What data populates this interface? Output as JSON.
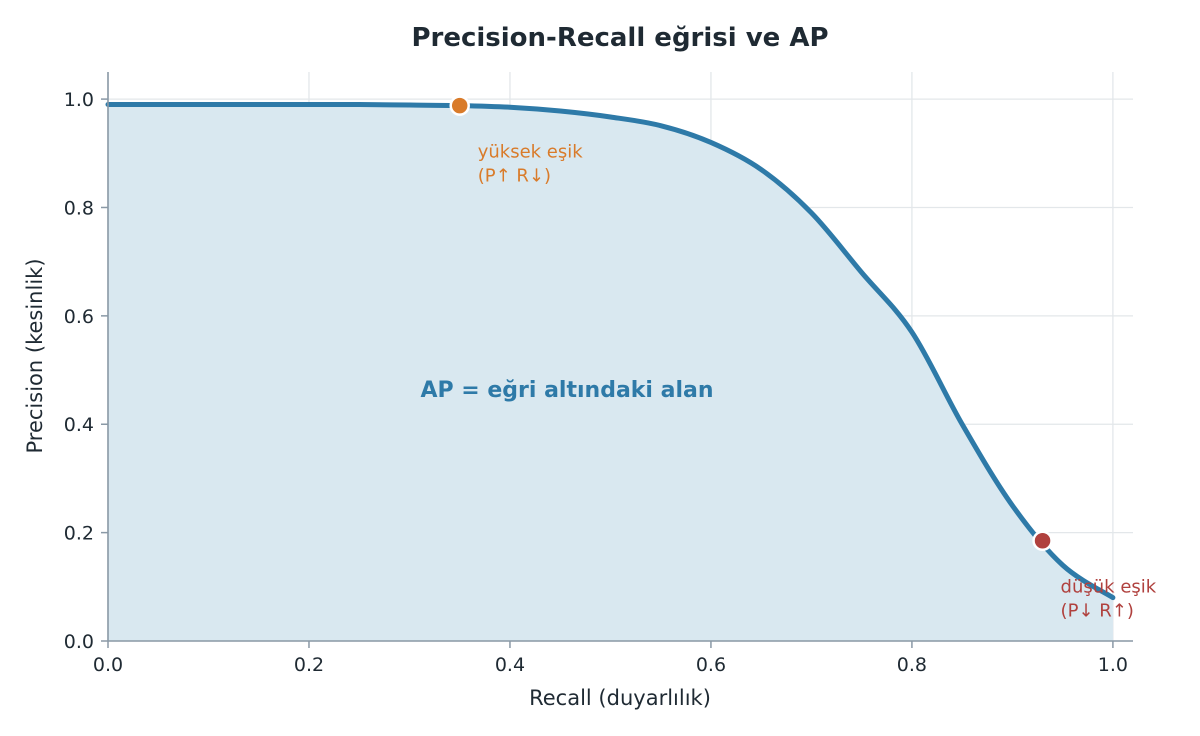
{
  "chart_data": {
    "type": "area",
    "title": "Precision-Recall eğrisi ve AP",
    "xlabel": "Recall (duyarlılık)",
    "ylabel": "Precision (kesinlik)",
    "xlim": [
      0.0,
      1.02
    ],
    "ylim": [
      0.0,
      1.05
    ],
    "xticks": [
      "0.0",
      "0.2",
      "0.4",
      "0.6",
      "0.8",
      "1.0"
    ],
    "yticks": [
      "0.0",
      "0.2",
      "0.4",
      "0.6",
      "0.8",
      "1.0"
    ],
    "grid": true,
    "curve": {
      "x": [
        0.0,
        0.05,
        0.1,
        0.15,
        0.2,
        0.25,
        0.3,
        0.35,
        0.4,
        0.45,
        0.5,
        0.55,
        0.6,
        0.65,
        0.7,
        0.75,
        0.8,
        0.85,
        0.9,
        0.95,
        1.0
      ],
      "y": [
        0.99,
        0.99,
        0.99,
        0.99,
        0.99,
        0.99,
        0.989,
        0.988,
        0.985,
        0.978,
        0.967,
        0.951,
        0.92,
        0.87,
        0.79,
        0.68,
        0.57,
        0.4,
        0.25,
        0.14,
        0.08
      ]
    },
    "points": [
      {
        "x": 0.35,
        "y": 0.988,
        "color": "#d97b2a",
        "label_line1": "yüksek eşik",
        "label_line2": "(P↑ R↓)"
      },
      {
        "x": 0.93,
        "y": 0.185,
        "color": "#b0413e",
        "label_line1": "düşük eşik",
        "label_line2": "(P↓ R↑)"
      }
    ],
    "area_annotation": "AP = eğri altındaki alan",
    "colors": {
      "line": "#2e7aa8",
      "fill": "#d9e8f0",
      "grid": "#e3e7ea",
      "axis": "#8a99a6",
      "text": "#1f2a33"
    }
  }
}
